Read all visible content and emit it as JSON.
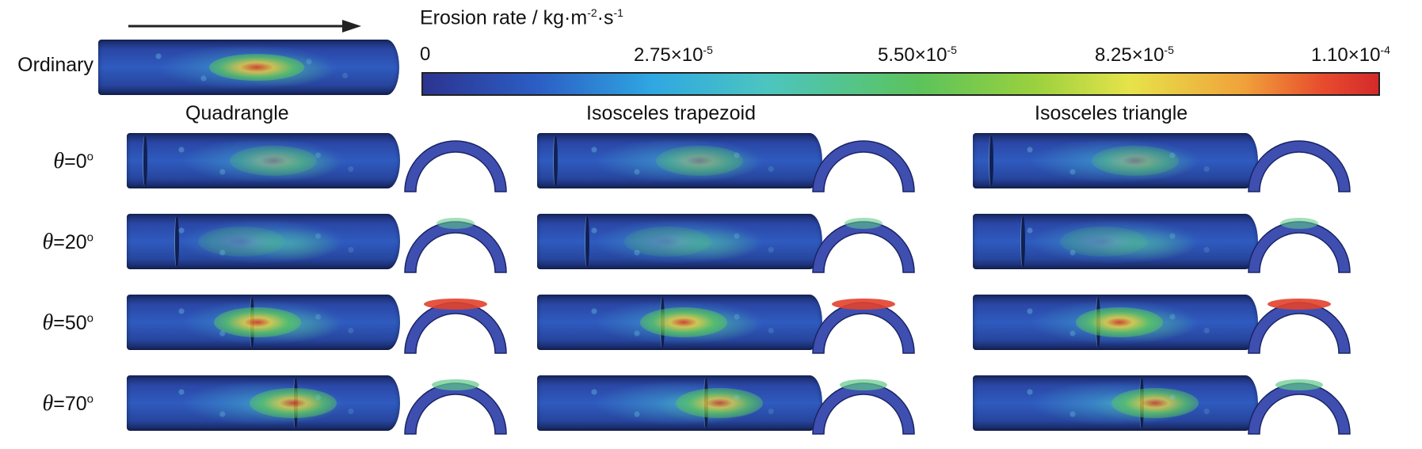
{
  "colorbar": {
    "title": "Erosion rate / kg·m",
    "title_sup1": "-2",
    "title_mid": "·s",
    "title_sup2": "-1",
    "ticks": [
      {
        "base": "0",
        "sup": ""
      },
      {
        "base": "2.75×10",
        "sup": "-5"
      },
      {
        "base": "5.50×10",
        "sup": "-5"
      },
      {
        "base": "8.25×10",
        "sup": "-5"
      },
      {
        "base": "1.10×10",
        "sup": "-4"
      }
    ],
    "colors": [
      "#2c3490",
      "#2fa7e2",
      "#5cc35b",
      "#e6e34a",
      "#d42a2a"
    ]
  },
  "ordinary_label": "Ordinary",
  "columns": [
    "Quadrangle",
    "Isosceles trapezoid",
    "Isosceles triangle"
  ],
  "rows": [
    {
      "theta": "θ",
      "eq": "=0",
      "deg": "o"
    },
    {
      "theta": "θ",
      "eq": "=20",
      "deg": "o"
    },
    {
      "theta": "θ",
      "eq": "=50",
      "deg": "o"
    },
    {
      "theta": "θ",
      "eq": "=70",
      "deg": "o"
    }
  ]
}
